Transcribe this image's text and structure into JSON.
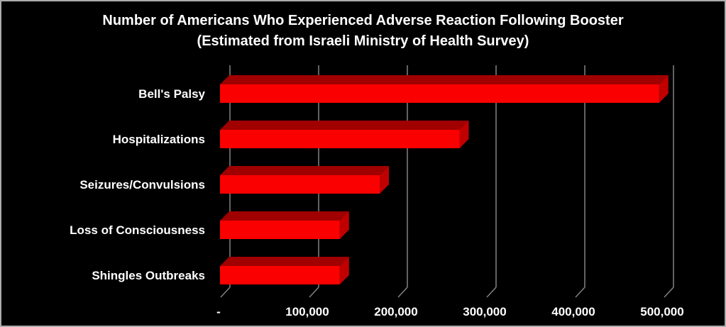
{
  "title": {
    "line1": "Number of Americans Who Experienced Adverse Reaction Following Booster",
    "line2": "(Estimated from Israeli Ministry of Health Survey)"
  },
  "chart_data": {
    "type": "bar",
    "orientation": "horizontal",
    "style": "3d",
    "title": "Number of Americans Who Experienced Adverse Reaction Following Booster (Estimated from Israeli Ministry of Health Survey)",
    "categories": [
      "Bell's Palsy",
      "Hospitalizations",
      "Seizures/Convulsions",
      "Loss of Consciousness",
      "Shingles Outbreaks"
    ],
    "values": [
      495000,
      270000,
      180000,
      135000,
      135000
    ],
    "x_tick_labels": [
      "-",
      "100,000",
      "200,000",
      "300,000",
      "400,000",
      "500,000"
    ],
    "x_tick_values": [
      0,
      100000,
      200000,
      300000,
      400000,
      500000
    ],
    "xlim": [
      0,
      500000
    ],
    "grid": true,
    "legend": "none",
    "colors": {
      "background": "#000000",
      "text": "#ffffff",
      "gridline": "#828282",
      "bar_front": "#fb0000",
      "bar_top": "#a00000",
      "bar_side": "#c00000",
      "frame_border": "#acacac"
    }
  }
}
